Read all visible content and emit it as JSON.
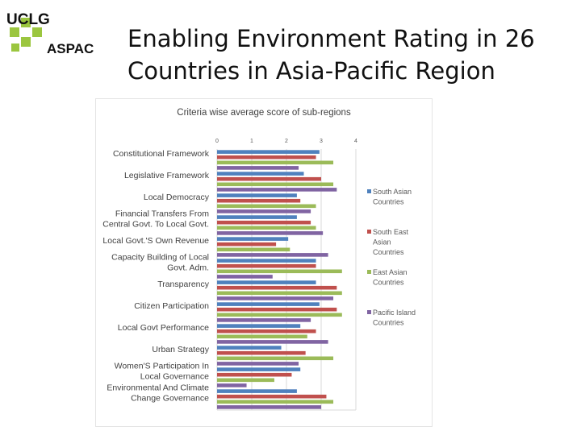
{
  "logo": {
    "text_top": "UCLG",
    "text_bottom": "ASPAC"
  },
  "slide": {
    "title_line1": "Enabling Environment Rating in 26",
    "title_line2": "Countries in Asia-Pacific Region"
  },
  "colors": {
    "s0": "#4f81bd",
    "s1": "#c0504d",
    "s2": "#9bbb59",
    "s3": "#8064a2"
  },
  "chart_data": {
    "type": "bar",
    "orientation": "horizontal",
    "title": "Criteria wise average score of sub-regions",
    "xlim": [
      0,
      4
    ],
    "xticks": [
      0,
      1,
      2,
      3,
      4
    ],
    "legend_position": "right",
    "categories": [
      [
        "Constitutional Framework"
      ],
      [
        "Legislative Framework"
      ],
      [
        "Local Democracy"
      ],
      [
        "Financial Transfers From",
        "Central Govt. To Local Govt."
      ],
      [
        "Local Govt.'S Own Revenue"
      ],
      [
        "Capacity Building of Local",
        "Govt. Adm."
      ],
      [
        "Transparency"
      ],
      [
        "Citizen Participation"
      ],
      [
        "Local Govt Performance"
      ],
      [
        "Urban Strategy"
      ],
      [
        "Women'S Participation In",
        "Local Governance"
      ],
      [
        "Environmental And Climate",
        "Change Governance"
      ]
    ],
    "series": [
      {
        "name": [
          "South Asian",
          "Countries"
        ],
        "values": [
          2.95,
          2.5,
          2.3,
          2.3,
          2.05,
          2.85,
          2.85,
          2.95,
          2.4,
          1.85,
          2.4,
          2.3
        ]
      },
      {
        "name": [
          "South East",
          "Asian",
          "Countries"
        ],
        "values": [
          2.85,
          3.0,
          2.4,
          2.7,
          1.7,
          2.85,
          3.45,
          3.45,
          2.85,
          2.55,
          2.15,
          3.15
        ]
      },
      {
        "name": [
          "East Asian",
          "Countries"
        ],
        "values": [
          3.35,
          3.35,
          2.85,
          2.85,
          2.1,
          3.6,
          3.6,
          3.6,
          2.6,
          3.35,
          1.65,
          3.35
        ]
      },
      {
        "name": [
          "Pacific Island",
          "Countries"
        ],
        "values": [
          2.35,
          3.45,
          2.7,
          3.05,
          3.2,
          1.6,
          3.35,
          2.7,
          3.2,
          2.35,
          0.85,
          3.0
        ]
      }
    ]
  }
}
